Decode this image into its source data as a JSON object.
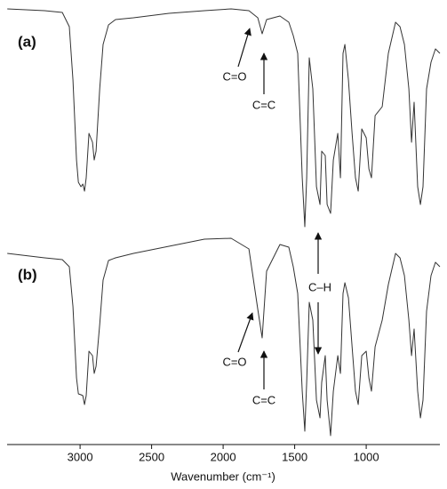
{
  "chart_data": {
    "type": "line",
    "xlabel": "Wavenumber (cm⁻¹)",
    "xlim": [
      3510,
      485
    ],
    "xticks": [
      3000,
      2500,
      2000,
      1500,
      1000
    ],
    "ylim": [
      0,
      100
    ],
    "annotations": [
      "(a)",
      "C=O",
      "C=C",
      "C–H",
      "(b)",
      "C=O",
      "C=C"
    ],
    "x": [
      3509,
      3248,
      3124,
      3075,
      3050,
      3025,
      3012,
      2994,
      2981,
      2969,
      2957,
      2938,
      2913,
      2901,
      2888,
      2863,
      2839,
      2801,
      2752,
      2627,
      2379,
      2131,
      1944,
      1820,
      1758,
      1727,
      1696,
      1603,
      1541,
      1510,
      1479,
      1447,
      1429,
      1416,
      1398,
      1373,
      1348,
      1323,
      1311,
      1286,
      1273,
      1249,
      1230,
      1199,
      1180,
      1162,
      1149,
      1124,
      1099,
      1075,
      1056,
      1031,
      1000,
      981,
      963,
      938,
      888,
      845,
      795,
      764,
      733,
      702,
      683,
      665,
      640,
      621,
      603,
      578,
      547,
      516,
      485
    ],
    "series": [
      {
        "name": "(a)",
        "color": "#333333",
        "values": [
          98,
          97.6,
          97.2,
          94,
          82,
          64,
          59,
          58,
          58.6,
          57,
          60,
          70,
          68,
          64,
          66,
          80,
          90,
          94.4,
          95.6,
          96,
          97,
          97.6,
          98,
          97.6,
          96,
          92.4,
          95.6,
          96.4,
          95,
          92,
          88,
          60,
          49,
          60,
          87,
          80,
          58,
          54,
          66,
          65,
          54,
          52,
          64,
          70,
          60,
          88,
          90,
          82,
          70,
          60,
          57,
          71,
          69,
          62,
          60,
          74,
          76,
          88,
          95,
          94,
          90,
          80,
          68,
          77,
          58,
          54,
          58,
          80,
          86,
          89,
          88
        ]
      },
      {
        "name": "(b)",
        "color": "#333333",
        "values": [
          43,
          42,
          41.6,
          40,
          31,
          15,
          11.4,
          11.2,
          11,
          9,
          11,
          21,
          20,
          16,
          17.6,
          27,
          37,
          41.4,
          42,
          43,
          44.6,
          46.2,
          46.4,
          44,
          30.4,
          24,
          39,
          45,
          44.4,
          40,
          34,
          12,
          3,
          14,
          32,
          28,
          10,
          6,
          14,
          20,
          10,
          2,
          12,
          20,
          16,
          34,
          36.4,
          33,
          22,
          12,
          9,
          20,
          21,
          15,
          12,
          22,
          28,
          36,
          43,
          42,
          38,
          28,
          20,
          26,
          12,
          6,
          10,
          30,
          38,
          41,
          40
        ]
      }
    ]
  }
}
